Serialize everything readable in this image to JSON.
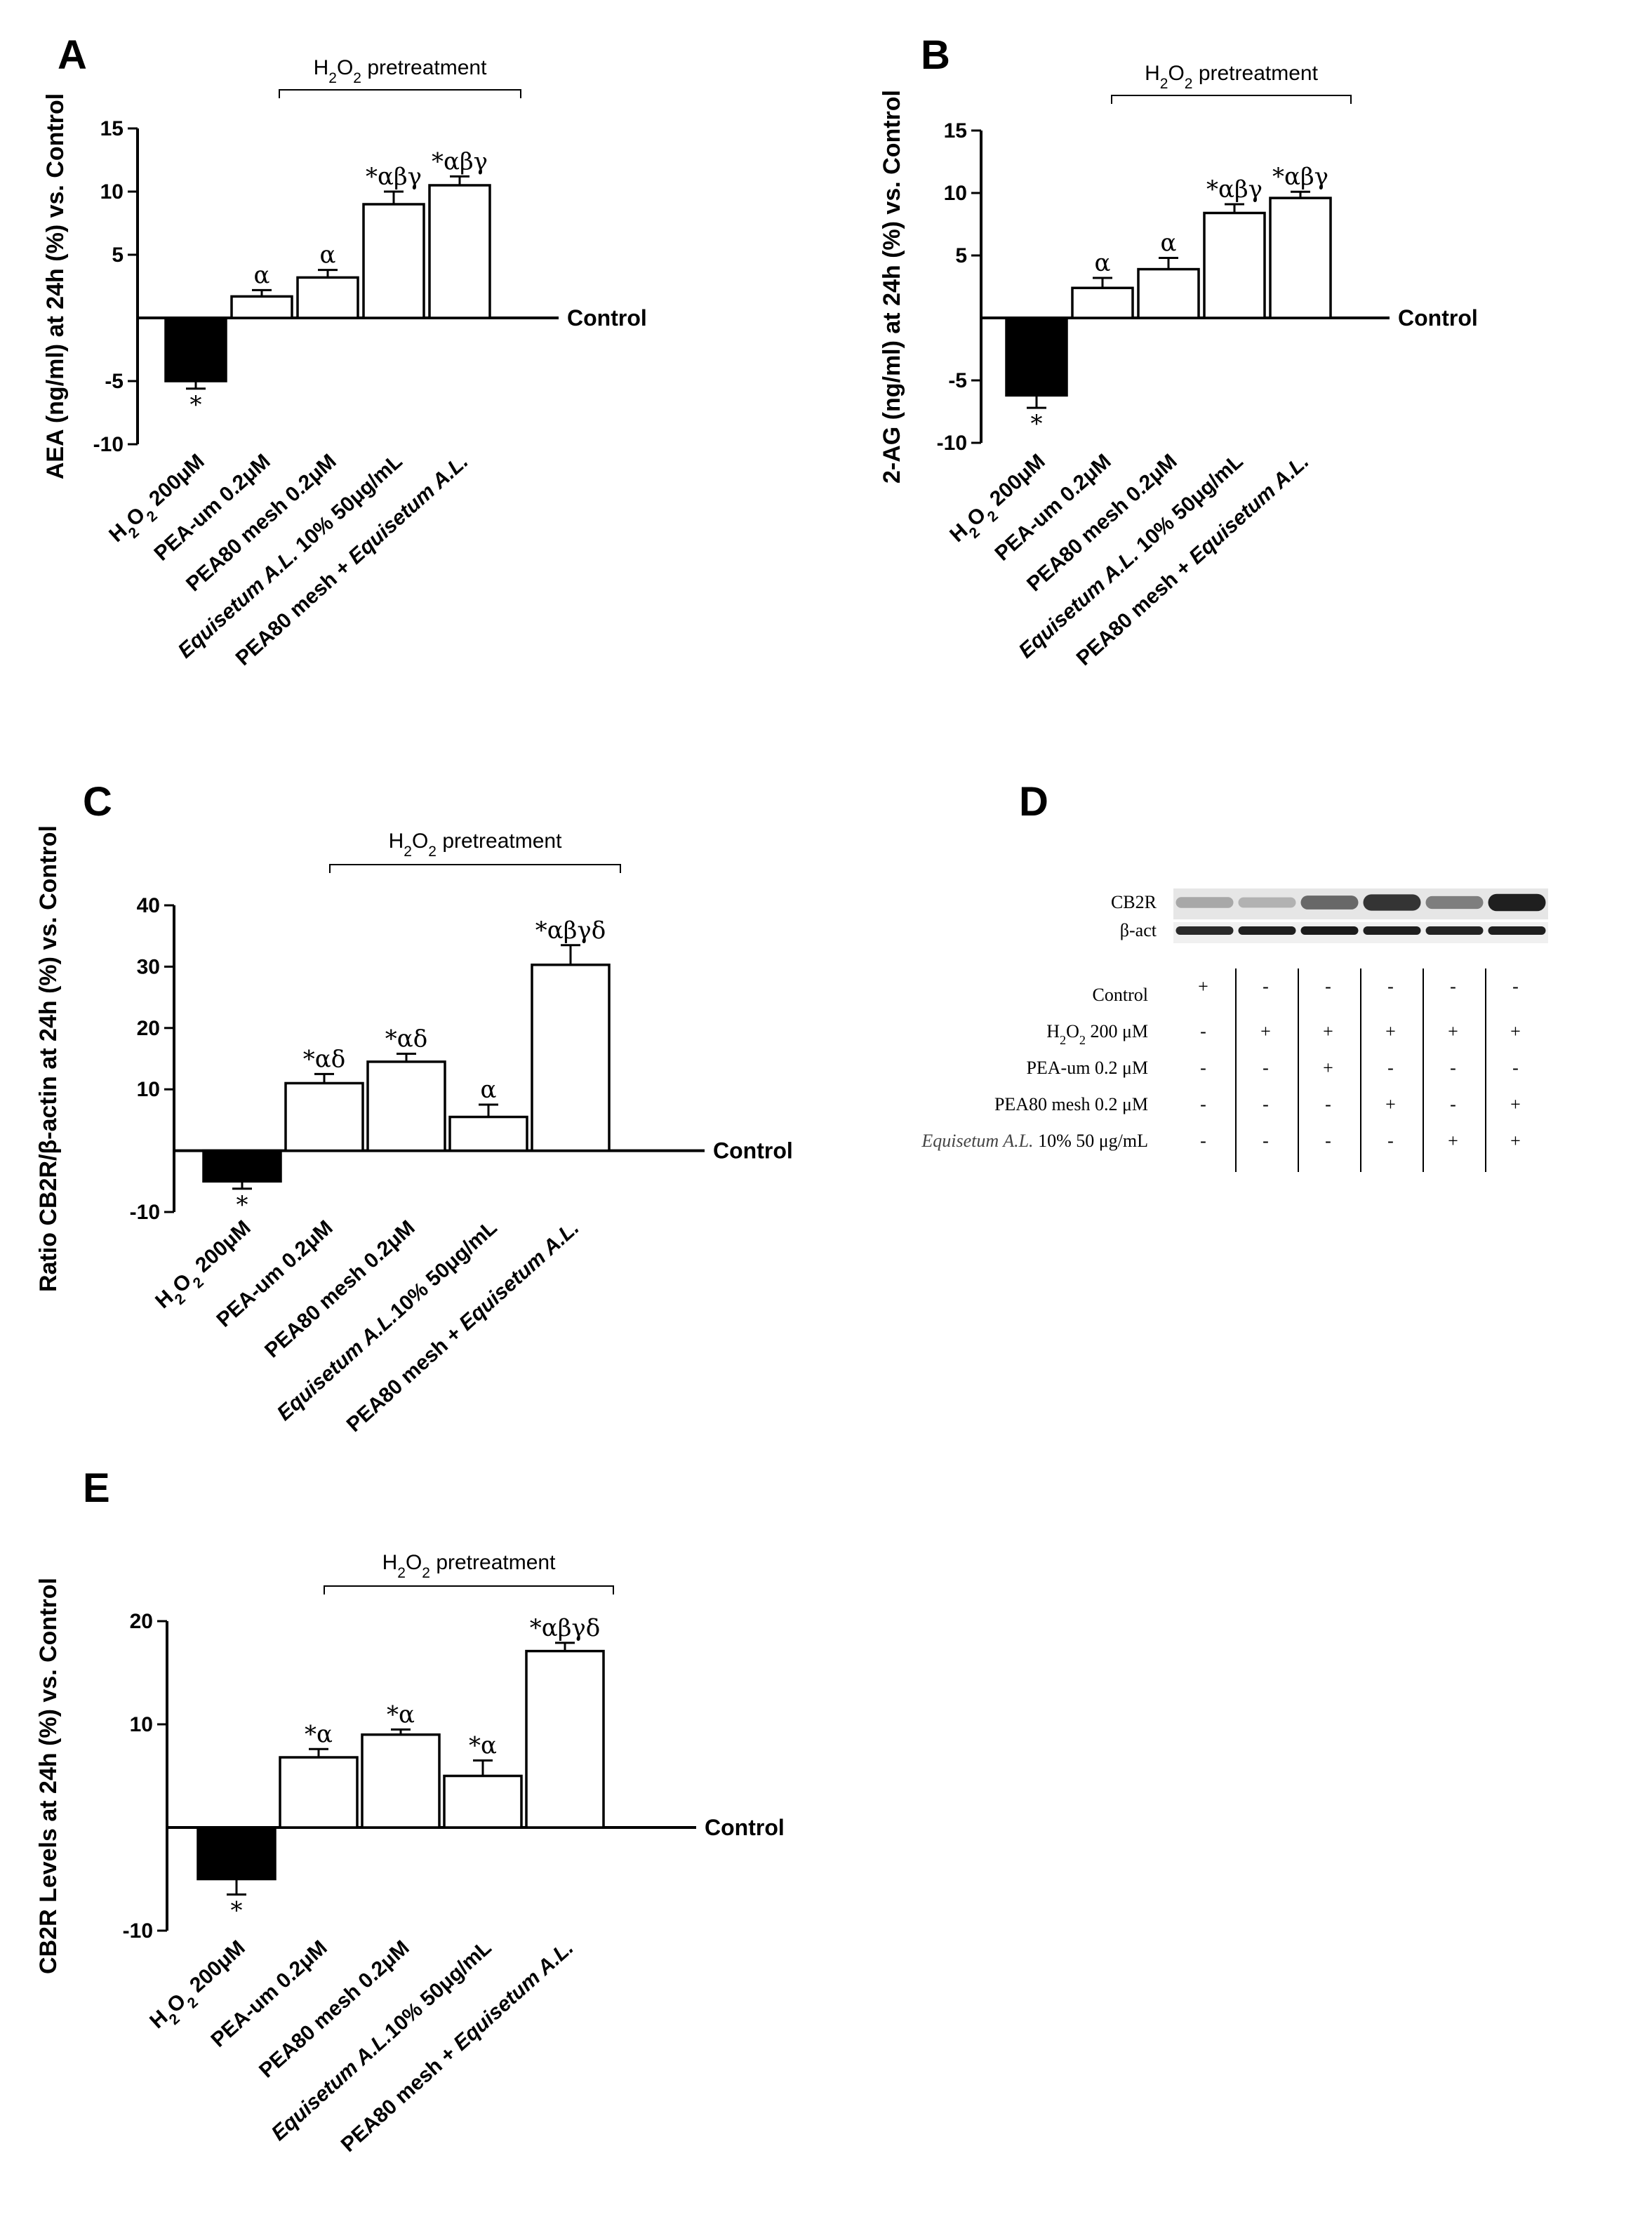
{
  "bracket_label": "H2O2 pretreatment",
  "control_label": "Control",
  "chart_data": [
    {
      "panel": "A",
      "type": "bar",
      "ylabel": "AEA (ng/ml) at 24h (%) vs. Control",
      "ylim": [
        -10,
        15
      ],
      "yticks": [
        -10,
        -5,
        5,
        10,
        15
      ],
      "categories": [
        "H2O2 200μM",
        "PEA-um 0.2μM",
        "PEA80 mesh 0.2μM",
        "Equisetum A.L. 10% 50μg/mL",
        "PEA80 mesh + Equisetum A.L."
      ],
      "values": [
        -5,
        1.7,
        3.2,
        9.0,
        10.5
      ],
      "errors": [
        0.6,
        0.5,
        0.6,
        1.0,
        0.7
      ],
      "fills": [
        "#000000",
        "#ffffff",
        "#ffffff",
        "#ffffff",
        "#ffffff"
      ],
      "significance": [
        "*",
        "α",
        "α",
        "*αβγ",
        "*αβγ"
      ]
    },
    {
      "panel": "B",
      "type": "bar",
      "ylabel": "2-AG (ng/ml) at 24h (%) vs. Control",
      "ylim": [
        -10,
        15
      ],
      "yticks": [
        -10,
        -5,
        5,
        10,
        15
      ],
      "categories": [
        "H2O2 200μM",
        "PEA-um 0.2μM",
        "PEA80 mesh 0.2μM",
        "Equisetum A.L. 10% 50μg/mL",
        "PEA80 mesh + Equisetum A.L."
      ],
      "values": [
        -6.2,
        2.4,
        3.9,
        8.4,
        9.6
      ],
      "errors": [
        1.0,
        0.8,
        0.9,
        0.7,
        0.5
      ],
      "fills": [
        "#000000",
        "#ffffff",
        "#ffffff",
        "#ffffff",
        "#ffffff"
      ],
      "significance": [
        "*",
        "α",
        "α",
        "*αβγ",
        "*αβγ"
      ]
    },
    {
      "panel": "C",
      "type": "bar",
      "ylabel": "Ratio CB2R/β-actin at 24h (%) vs. Control",
      "ylim": [
        -10,
        40
      ],
      "yticks": [
        -10,
        10,
        20,
        30,
        40
      ],
      "categories": [
        "H2O2 200μM",
        "PEA-um 0.2μM",
        "PEA80 mesh 0.2μM",
        "Equisetum A.L.10% 50μg/mL",
        "PEA80 mesh + Equisetum A.L."
      ],
      "values": [
        -5,
        11,
        14.5,
        5.5,
        30.3
      ],
      "errors": [
        1.2,
        1.5,
        1.3,
        2.0,
        3.2
      ],
      "fills": [
        "#000000",
        "#ffffff",
        "#ffffff",
        "#ffffff",
        "#ffffff"
      ],
      "significance": [
        "*",
        "*αδ",
        "*αδ",
        "α",
        "*αβγδ"
      ]
    },
    {
      "panel": "E",
      "type": "bar",
      "ylabel": "CB2R Levels at 24h (%) vs. Control",
      "ylim": [
        -10,
        20
      ],
      "yticks": [
        -10,
        10,
        20
      ],
      "categories": [
        "H2O2 200μM",
        "PEA-um 0.2μM",
        "PEA80 mesh 0.2μM",
        "Equisetum A.L.10% 50μg/mL",
        "PEA80 mesh + Equisetum A.L."
      ],
      "values": [
        -5,
        6.8,
        9.0,
        5.0,
        17.1
      ],
      "errors": [
        1.5,
        0.8,
        0.5,
        1.5,
        0.8
      ],
      "fills": [
        "#000000",
        "#ffffff",
        "#ffffff",
        "#ffffff",
        "#ffffff"
      ],
      "significance": [
        "*",
        "*α",
        "*α",
        "*α",
        "*αβγδ"
      ]
    }
  ],
  "western_blot": {
    "panel": "D",
    "bands": [
      {
        "name": "CB2R",
        "intensities": [
          0.25,
          0.2,
          0.55,
          0.8,
          0.45,
          0.9
        ]
      },
      {
        "name": "β-act",
        "intensities": [
          0.85,
          0.9,
          0.92,
          0.9,
          0.88,
          0.9
        ]
      }
    ],
    "conditions": [
      {
        "label": "Control",
        "signs": [
          "+",
          "-",
          "-",
          "-",
          "-",
          "-"
        ]
      },
      {
        "label": "H2O2 200 μM",
        "signs": [
          "-",
          "+",
          "+",
          "+",
          "+",
          "+"
        ]
      },
      {
        "label": "PEA-um 0.2 μM",
        "signs": [
          "-",
          "-",
          "+",
          "-",
          "-",
          "-"
        ]
      },
      {
        "label": "PEA80 mesh 0.2 μM",
        "signs": [
          "-",
          "-",
          "-",
          "+",
          "-",
          "+"
        ]
      },
      {
        "label": "Equisetum A.L. 10% 50 μg/mL",
        "signs": [
          "-",
          "-",
          "-",
          "-",
          "+",
          "+"
        ]
      }
    ]
  }
}
